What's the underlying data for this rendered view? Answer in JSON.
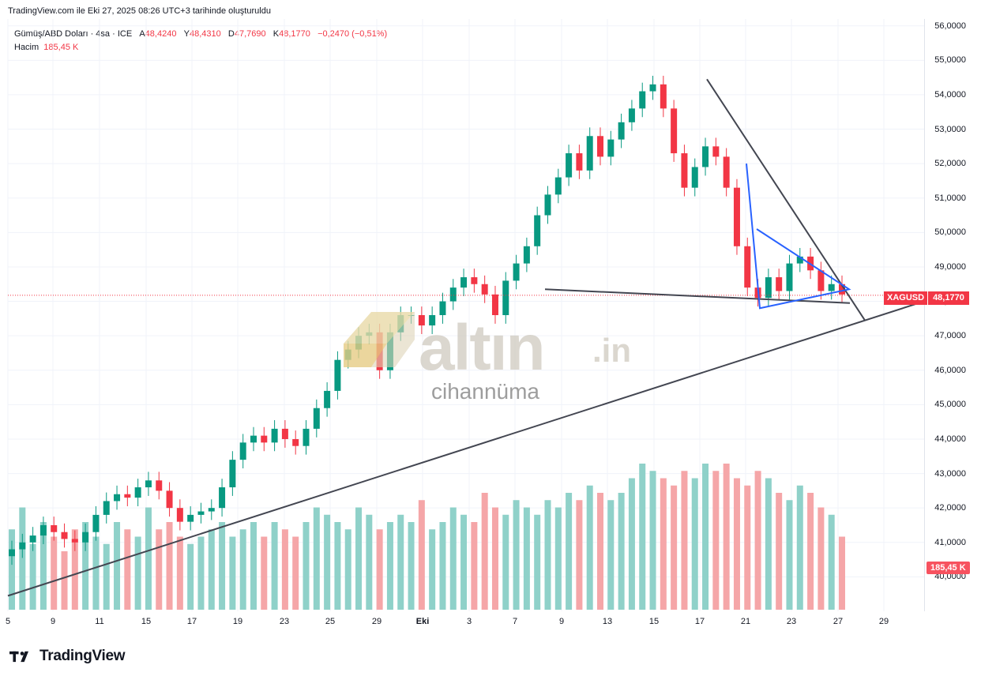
{
  "caption": "TradingView.com ile Eki 27, 2025 08:26 UTC+3 tarihinde oluşturuldu",
  "legend": {
    "symbol": "Gümüş/ABD Doları · 4sa · ICE",
    "open_label": "A",
    "open": "48,4240",
    "high_label": "Y",
    "high": "48,4310",
    "low_label": "D",
    "low": "47,7690",
    "close_label": "K",
    "close": "48,1770",
    "change": "−0,2470 (−0,51%)",
    "volume_label": "Hacim",
    "volume": "185,45 K"
  },
  "price_badge": {
    "symbol": "XAGUSD",
    "value": "48,1770"
  },
  "volume_badge": "185,45 K",
  "watermark": {
    "main": "altın",
    "suffix": ".in",
    "sub": "cihannüma"
  },
  "footer": {
    "brand": "TradingView"
  },
  "colors": {
    "up": "#089981",
    "down": "#f23645",
    "vol_up": "#8fd1c9",
    "vol_down": "#f5a6a8",
    "trendline": "#434651",
    "pattern": "#2962ff",
    "accent": "#f23645"
  },
  "chart_data": {
    "type": "candlestick",
    "title": "Gümüş/ABD Doları · 4sa · ICE",
    "ylim": [
      39.0,
      56.2
    ],
    "y_ticks": [
      "56,0000",
      "55,0000",
      "54,0000",
      "53,0000",
      "52,0000",
      "51,0000",
      "50,0000",
      "49,0000",
      "48,0000",
      "47,0000",
      "46,0000",
      "45,0000",
      "44,0000",
      "43,0000",
      "42,0000",
      "41,0000",
      "40,0000"
    ],
    "x_ticks": [
      "5",
      "9",
      "11",
      "15",
      "17",
      "19",
      "23",
      "25",
      "29",
      "Eki",
      "3",
      "7",
      "9",
      "13",
      "15",
      "17",
      "21",
      "23",
      "27",
      "29"
    ],
    "last_price": 48.177,
    "series": [
      {
        "name": "XAGUSD",
        "values": [
          40.8,
          41.0,
          41.2,
          41.5,
          41.3,
          41.1,
          41.0,
          41.3,
          41.8,
          42.2,
          42.4,
          42.3,
          42.6,
          42.8,
          42.5,
          42.0,
          41.6,
          41.8,
          41.9,
          42.0,
          42.6,
          43.4,
          43.9,
          44.1,
          43.9,
          44.3,
          44.0,
          43.8,
          44.3,
          44.9,
          45.4,
          46.3,
          46.6,
          47.0,
          47.1,
          46.0,
          47.1,
          47.6,
          47.6,
          47.3,
          47.6,
          48.0,
          48.4,
          48.7,
          48.5,
          48.2,
          47.6,
          48.6,
          49.1,
          49.6,
          50.5,
          51.1,
          51.6,
          52.3,
          51.8,
          52.8,
          52.2,
          52.7,
          53.2,
          53.6,
          54.1,
          54.3,
          53.6,
          52.3,
          51.3,
          51.9,
          52.5,
          52.2,
          51.3,
          49.6,
          48.4,
          48.1,
          48.7,
          48.3,
          49.1,
          49.3,
          48.9,
          48.3,
          48.5,
          48.2
        ]
      },
      {
        "name": "Hacim",
        "values": [
          0.55,
          0.7,
          0.45,
          0.6,
          0.5,
          0.4,
          0.55,
          0.6,
          0.5,
          0.45,
          0.6,
          0.55,
          0.5,
          0.7,
          0.55,
          0.6,
          0.5,
          0.45,
          0.5,
          0.55,
          0.6,
          0.5,
          0.55,
          0.6,
          0.5,
          0.6,
          0.55,
          0.5,
          0.6,
          0.7,
          0.65,
          0.6,
          0.55,
          0.7,
          0.65,
          0.55,
          0.6,
          0.65,
          0.6,
          0.75,
          0.55,
          0.6,
          0.7,
          0.65,
          0.6,
          0.8,
          0.7,
          0.65,
          0.75,
          0.7,
          0.65,
          0.75,
          0.7,
          0.8,
          0.75,
          0.85,
          0.8,
          0.75,
          0.8,
          0.9,
          1.0,
          0.95,
          0.9,
          0.85,
          0.95,
          0.9,
          1.0,
          0.95,
          1.0,
          0.9,
          0.85,
          0.95,
          0.9,
          0.8,
          0.75,
          0.85,
          0.8,
          0.7,
          0.65,
          0.5
        ]
      }
    ],
    "annotations": [
      "support trendline",
      "falling wedge",
      "symmetric triangle"
    ]
  }
}
